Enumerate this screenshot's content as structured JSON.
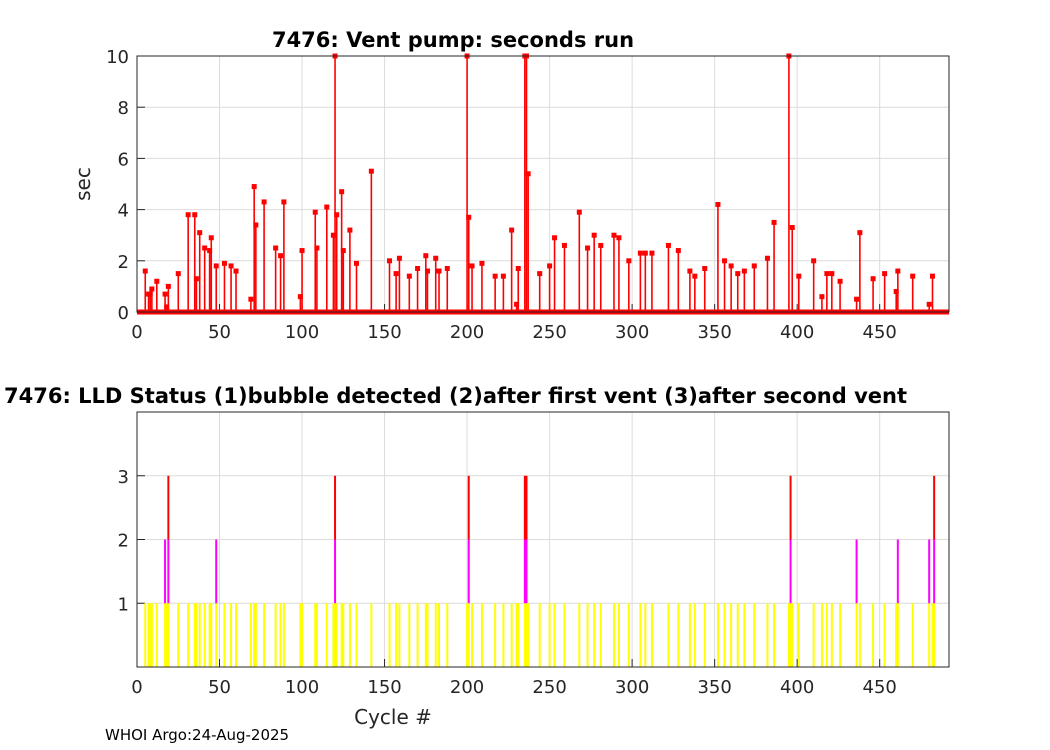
{
  "footer": "WHOI Argo:24-Aug-2025",
  "chart_data": [
    {
      "type": "stem",
      "title": "7476: Vent pump: seconds run",
      "xlabel": "",
      "ylabel": "sec",
      "xlim": [
        0,
        492
      ],
      "ylim": [
        0,
        10
      ],
      "xticks": [
        0,
        50,
        100,
        150,
        200,
        250,
        300,
        350,
        400,
        450
      ],
      "yticks": [
        0,
        2,
        4,
        6,
        8,
        10
      ],
      "grid": true,
      "color": "#ff0000",
      "x_range_cycles": [
        1,
        485
      ],
      "points": [
        [
          5,
          1.6
        ],
        [
          7,
          0.7
        ],
        [
          8,
          0.7
        ],
        [
          9,
          0.9
        ],
        [
          12,
          1.2
        ],
        [
          17,
          0.7
        ],
        [
          18,
          0.2
        ],
        [
          19,
          1.0
        ],
        [
          25,
          1.5
        ],
        [
          31,
          3.8
        ],
        [
          35,
          3.8
        ],
        [
          36,
          1.3
        ],
        [
          38,
          3.1
        ],
        [
          41,
          2.5
        ],
        [
          44,
          2.4
        ],
        [
          45,
          2.9
        ],
        [
          48,
          1.8
        ],
        [
          53,
          1.9
        ],
        [
          57,
          1.8
        ],
        [
          60,
          1.6
        ],
        [
          69,
          0.5
        ],
        [
          71,
          4.9
        ],
        [
          72,
          3.4
        ],
        [
          77,
          4.3
        ],
        [
          84,
          2.5
        ],
        [
          87,
          2.2
        ],
        [
          89,
          4.3
        ],
        [
          99,
          0.6
        ],
        [
          100,
          2.4
        ],
        [
          108,
          3.9
        ],
        [
          109,
          2.5
        ],
        [
          115,
          4.1
        ],
        [
          119,
          3.0
        ],
        [
          120,
          10
        ],
        [
          121,
          3.8
        ],
        [
          124,
          4.7
        ],
        [
          125,
          2.4
        ],
        [
          129,
          3.2
        ],
        [
          133,
          1.9
        ],
        [
          142,
          5.5
        ],
        [
          153,
          2.0
        ],
        [
          157,
          1.5
        ],
        [
          159,
          2.1
        ],
        [
          165,
          1.4
        ],
        [
          170,
          1.7
        ],
        [
          175,
          2.2
        ],
        [
          176,
          1.6
        ],
        [
          181,
          2.1
        ],
        [
          183,
          1.6
        ],
        [
          188,
          1.7
        ],
        [
          200,
          10
        ],
        [
          201,
          3.7
        ],
        [
          203,
          1.8
        ],
        [
          209,
          1.9
        ],
        [
          217,
          1.4
        ],
        [
          222,
          1.4
        ],
        [
          227,
          3.2
        ],
        [
          230,
          0.3
        ],
        [
          231,
          1.7
        ],
        [
          235,
          10
        ],
        [
          236,
          10
        ],
        [
          237,
          5.4
        ],
        [
          244,
          1.5
        ],
        [
          250,
          1.8
        ],
        [
          253,
          2.9
        ],
        [
          259,
          2.6
        ],
        [
          268,
          3.9
        ],
        [
          273,
          2.5
        ],
        [
          277,
          3.0
        ],
        [
          281,
          2.6
        ],
        [
          289,
          3.0
        ],
        [
          292,
          2.9
        ],
        [
          298,
          2.0
        ],
        [
          305,
          2.3
        ],
        [
          308,
          2.3
        ],
        [
          312,
          2.3
        ],
        [
          322,
          2.6
        ],
        [
          328,
          2.4
        ],
        [
          335,
          1.6
        ],
        [
          338,
          1.4
        ],
        [
          344,
          1.7
        ],
        [
          352,
          4.2
        ],
        [
          356,
          2.0
        ],
        [
          360,
          1.8
        ],
        [
          364,
          1.5
        ],
        [
          368,
          1.6
        ],
        [
          374,
          1.8
        ],
        [
          382,
          2.1
        ],
        [
          386,
          3.5
        ],
        [
          395,
          10
        ],
        [
          397,
          3.3
        ],
        [
          401,
          1.4
        ],
        [
          410,
          2.0
        ],
        [
          415,
          0.6
        ],
        [
          418,
          1.5
        ],
        [
          421,
          1.5
        ],
        [
          426,
          1.2
        ],
        [
          436,
          0.5
        ],
        [
          438,
          3.1
        ],
        [
          446,
          1.3
        ],
        [
          453,
          1.5
        ],
        [
          460,
          0.8
        ],
        [
          461,
          1.6
        ],
        [
          470,
          1.4
        ],
        [
          480,
          0.3
        ],
        [
          482,
          1.4
        ]
      ]
    },
    {
      "type": "bar",
      "title": "7476: LLD Status   (1)bubble detected   (2)after first vent  (3)after second vent",
      "xlabel": "Cycle #",
      "ylabel": "",
      "xlim": [
        0,
        492
      ],
      "ylim": [
        0,
        4
      ],
      "xticks": [
        0,
        50,
        100,
        150,
        200,
        250,
        300,
        350,
        400,
        450
      ],
      "yticks": [
        1,
        2,
        3
      ],
      "grid": true,
      "level_colors": [
        "#ffff00",
        "#ff00ff",
        "#ff0000"
      ],
      "status3_cycles": [
        19,
        120,
        201,
        235,
        236,
        396,
        483
      ],
      "status2_cycles": [
        17,
        48,
        436,
        461,
        480
      ]
    }
  ]
}
